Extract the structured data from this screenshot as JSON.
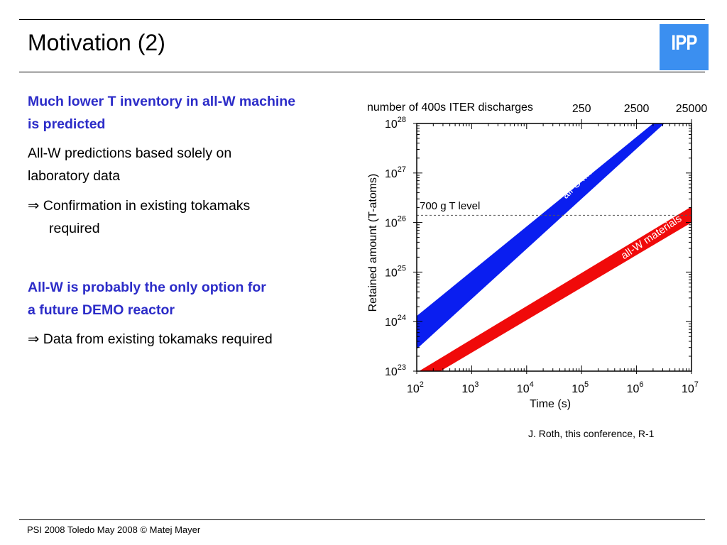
{
  "slide": {
    "title": "Motivation (2)",
    "logo_text": "IPP",
    "logo_color": "#3b8ff0",
    "bullets": [
      {
        "text": "Much lower T inventory in all-W machine",
        "style": "bold-blue"
      },
      {
        "text": "is predicted",
        "style": "bold-blue"
      },
      {
        "text": "All-W predictions based solely on",
        "style": "normal"
      },
      {
        "text": "laboratory data",
        "style": "normal"
      },
      {
        "text": "⇒ Confirmation in existing tokamaks",
        "style": "normal"
      },
      {
        "text": "required",
        "style": "normal"
      },
      {
        "text": "All-W is probably the only option for",
        "style": "bold-blue"
      },
      {
        "text": "a future DEMO reactor",
        "style": "bold-blue"
      },
      {
        "text": "⇒ Data from existing tokamaks required",
        "style": "normal"
      }
    ],
    "citation": "J. Roth, this conference, R-1",
    "footer": "PSI 2008 Toledo May 2008 © Matej Mayer",
    "accent_color": "#2c2cc8"
  },
  "chart_data": {
    "type": "area",
    "xlabel": "Time (s)",
    "ylabel": "Retained amount (T-atoms)",
    "x_scale": "log",
    "y_scale": "log",
    "xlim": [
      100,
      10000000
    ],
    "ylim": [
      1e+23,
      1e+28
    ],
    "x_tick_labels": [
      {
        "base": "10",
        "exp": "2"
      },
      {
        "base": "10",
        "exp": "3"
      },
      {
        "base": "10",
        "exp": "4"
      },
      {
        "base": "10",
        "exp": "5"
      },
      {
        "base": "10",
        "exp": "6"
      },
      {
        "base": "10",
        "exp": "7"
      }
    ],
    "y_tick_labels": [
      {
        "base": "10",
        "exp": "23"
      },
      {
        "base": "10",
        "exp": "24"
      },
      {
        "base": "10",
        "exp": "25"
      },
      {
        "base": "10",
        "exp": "26"
      },
      {
        "base": "10",
        "exp": "27"
      },
      {
        "base": "10",
        "exp": "28"
      }
    ],
    "top_axis": {
      "label": "number of 400s ITER discharges",
      "ticks": [
        {
          "label": "250",
          "x": 100000
        },
        {
          "label": "2500",
          "x": 1000000
        },
        {
          "label": "25000",
          "x": 10000000
        }
      ]
    },
    "reference_line": {
      "label": "700 g T level",
      "y": 1.4e+26,
      "style": "dashed"
    },
    "series": [
      {
        "name": "all-C materials",
        "color": "#0a1ef0",
        "x": [
          100,
          3200000
        ],
        "y_low": [
          2.8e+23,
          1e+28
        ],
        "y_high": [
          1.3e+24,
          1e+28
        ],
        "band_edges": {
          "upper": {
            "x": [
              100,
              2000000
            ],
            "y": [
              1.3e+24,
              1e+28
            ]
          },
          "lower": {
            "x": [
              100,
              3200000
            ],
            "y": [
              2.8e+23,
              1e+28
            ]
          }
        }
      },
      {
        "name": "all-W materials",
        "color": "#f00a0a",
        "band_edges": {
          "upper": {
            "x": [
              110,
              10000000
            ],
            "y": [
              1e+23,
              2.1e+26
            ]
          },
          "lower": {
            "x": [
              270,
              10000000
            ],
            "y": [
              1e+23,
              1e+26
            ]
          }
        }
      }
    ],
    "grid": false,
    "legend": "none (labels inside bands)"
  }
}
